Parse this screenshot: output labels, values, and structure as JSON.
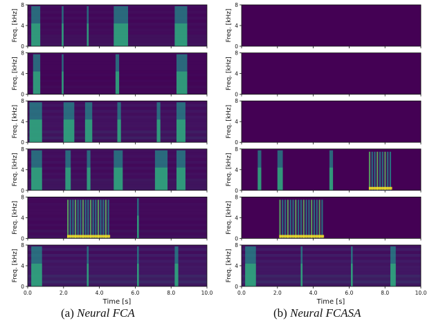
{
  "figure": {
    "ylabel": "Freq. [kHz]",
    "xlabel": "Time [s]",
    "yticks": [
      "0",
      "4",
      "8"
    ],
    "xticks": [
      "0.0",
      "2.0",
      "4.0",
      "6.0",
      "8.0",
      "10.0"
    ],
    "background_color": "#440154",
    "columns": [
      {
        "caption_prefix": "(a) ",
        "caption_name": "Neural FCA"
      },
      {
        "caption_prefix": "(b) ",
        "caption_name": "Neural FCASA"
      }
    ]
  },
  "chart_data": {
    "type": "heatmap",
    "x_range_s": [
      0,
      10
    ],
    "y_range_khz": [
      0,
      8
    ],
    "colormap": "viridis",
    "panels": [
      {
        "column": "a",
        "row": 1,
        "noise": 0.22,
        "active": [
          [
            0.2,
            0.7
          ],
          [
            1.9,
            2.0
          ],
          [
            3.3,
            3.4
          ],
          [
            4.8,
            5.6
          ],
          [
            8.2,
            8.9
          ]
        ]
      },
      {
        "column": "a",
        "row": 2,
        "noise": 0.12,
        "active": [
          [
            0.3,
            0.7
          ],
          [
            1.9,
            2.0
          ],
          [
            4.9,
            5.1
          ],
          [
            8.3,
            8.9
          ]
        ]
      },
      {
        "column": "a",
        "row": 3,
        "noise": 0.35,
        "active": [
          [
            0.1,
            0.8
          ],
          [
            2.0,
            2.6
          ],
          [
            3.2,
            3.6
          ],
          [
            5.0,
            5.2
          ],
          [
            7.2,
            7.4
          ],
          [
            8.3,
            8.8
          ]
        ]
      },
      {
        "column": "a",
        "row": 4,
        "noise": 0.28,
        "active": [
          [
            0.2,
            0.8
          ],
          [
            2.1,
            2.4
          ],
          [
            3.3,
            3.5
          ],
          [
            4.8,
            5.3
          ],
          [
            7.1,
            7.8
          ],
          [
            8.3,
            8.8
          ]
        ]
      },
      {
        "column": "a",
        "row": 5,
        "noise": 0.2,
        "active": [
          [
            2.2,
            4.6
          ],
          [
            6.1,
            6.2
          ]
        ]
      },
      {
        "column": "a",
        "row": 6,
        "noise": 0.45,
        "active": [
          [
            0.2,
            0.8
          ],
          [
            3.3,
            3.4
          ],
          [
            6.1,
            6.2
          ],
          [
            8.2,
            8.4
          ]
        ]
      },
      {
        "column": "b",
        "row": 1,
        "noise": 0.0,
        "active": []
      },
      {
        "column": "b",
        "row": 2,
        "noise": 0.0,
        "active": []
      },
      {
        "column": "b",
        "row": 3,
        "noise": 0.0,
        "active": []
      },
      {
        "column": "b",
        "row": 4,
        "noise": 0.0,
        "active": [
          [
            0.9,
            1.1
          ],
          [
            2.0,
            2.3
          ],
          [
            4.9,
            5.1
          ],
          [
            7.1,
            8.4
          ]
        ]
      },
      {
        "column": "b",
        "row": 5,
        "noise": 0.0,
        "active": [
          [
            2.1,
            4.6
          ]
        ]
      },
      {
        "column": "b",
        "row": 6,
        "noise": 0.45,
        "active": [
          [
            0.2,
            0.8
          ],
          [
            3.3,
            3.4
          ],
          [
            6.1,
            6.2
          ],
          [
            8.3,
            8.6
          ]
        ]
      }
    ]
  }
}
